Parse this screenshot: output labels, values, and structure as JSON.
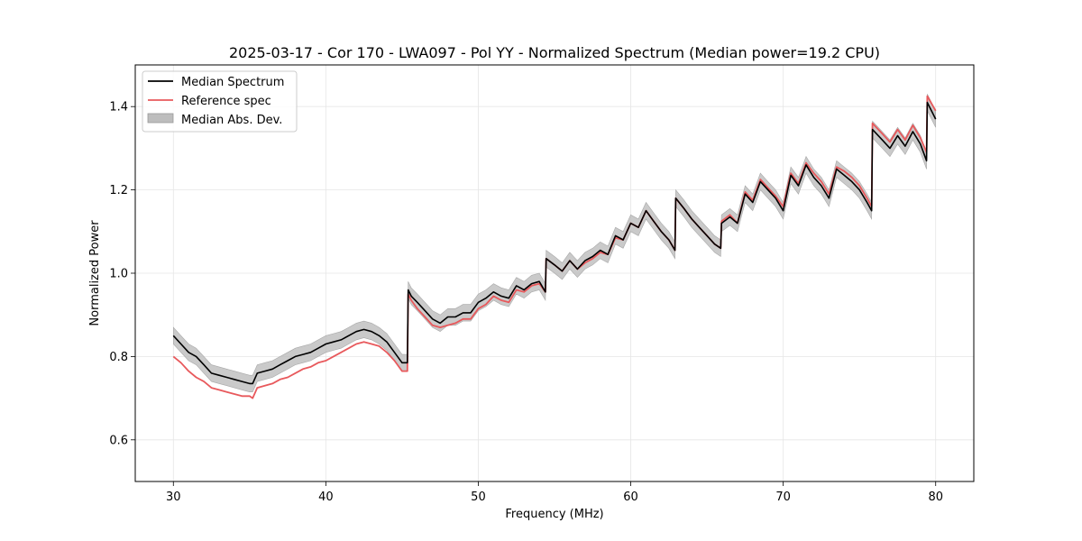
{
  "chart_data": {
    "type": "line",
    "title": "2025-03-17 - Cor 170 - LWA097 - Pol YY - Normalized Spectrum (Median power=19.2 CPU)",
    "xlabel": "Frequency (MHz)",
    "ylabel": "Normalized Power",
    "xlim": [
      27.5,
      82.5
    ],
    "ylim": [
      0.5,
      1.5
    ],
    "xticks": [
      30,
      40,
      50,
      60,
      70,
      80
    ],
    "yticks": [
      0.6,
      0.8,
      1.0,
      1.2,
      1.4
    ],
    "xtick_labels": [
      "30",
      "40",
      "50",
      "60",
      "70",
      "80"
    ],
    "ytick_labels": [
      "0.6",
      "0.8",
      "1.0",
      "1.2",
      "1.4"
    ],
    "grid": true,
    "legend_position": "top-left",
    "legend": [
      "Median Spectrum",
      "Reference spec",
      "Median Abs. Dev."
    ],
    "colors": {
      "median": "#000000",
      "reference": "#e8595c",
      "mad": "#bdbdbd"
    },
    "band_halfwidth": 0.02,
    "series": [
      {
        "name": "Median Spectrum",
        "x": [
          30,
          30.5,
          31,
          31.5,
          32,
          32.5,
          33,
          33.5,
          34,
          34.5,
          35,
          35.2,
          35.5,
          36,
          36.5,
          37,
          37.5,
          38,
          38.5,
          39,
          39.5,
          40,
          40.5,
          41,
          41.5,
          42,
          42.5,
          43,
          43.5,
          44,
          44.5,
          45,
          45.35,
          45.4,
          45.6,
          46,
          46.5,
          47,
          47.5,
          48,
          48.5,
          49,
          49.5,
          50,
          50.5,
          51,
          51.5,
          52,
          52.5,
          53,
          53.5,
          54,
          54.4,
          54.45,
          55,
          55.5,
          56,
          56.5,
          57,
          57.5,
          58,
          58.5,
          59,
          59.5,
          60,
          60.5,
          61,
          61.5,
          62,
          62.5,
          62.9,
          62.95,
          63.5,
          64,
          64.5,
          65,
          65.5,
          65.9,
          65.95,
          66.5,
          67,
          67.5,
          68,
          68.5,
          69,
          69.5,
          70,
          70.5,
          71,
          71.5,
          72,
          72.5,
          73,
          73.5,
          74,
          74.5,
          75,
          75.5,
          75.8,
          75.85,
          76.5,
          77,
          77.5,
          78,
          78.5,
          79,
          79.4,
          79.45,
          80
        ],
        "values": [
          0.85,
          0.83,
          0.81,
          0.8,
          0.78,
          0.76,
          0.755,
          0.75,
          0.745,
          0.74,
          0.735,
          0.735,
          0.76,
          0.765,
          0.77,
          0.78,
          0.79,
          0.8,
          0.805,
          0.81,
          0.82,
          0.83,
          0.835,
          0.84,
          0.85,
          0.86,
          0.865,
          0.86,
          0.85,
          0.835,
          0.81,
          0.785,
          0.785,
          0.96,
          0.945,
          0.93,
          0.91,
          0.89,
          0.88,
          0.895,
          0.895,
          0.905,
          0.905,
          0.93,
          0.94,
          0.955,
          0.945,
          0.94,
          0.97,
          0.96,
          0.975,
          0.98,
          0.955,
          1.035,
          1.02,
          1.005,
          1.03,
          1.01,
          1.03,
          1.04,
          1.055,
          1.045,
          1.09,
          1.08,
          1.12,
          1.11,
          1.15,
          1.125,
          1.1,
          1.08,
          1.055,
          1.18,
          1.155,
          1.13,
          1.11,
          1.09,
          1.07,
          1.06,
          1.12,
          1.135,
          1.12,
          1.19,
          1.17,
          1.22,
          1.2,
          1.18,
          1.15,
          1.235,
          1.21,
          1.26,
          1.23,
          1.21,
          1.18,
          1.25,
          1.235,
          1.22,
          1.2,
          1.17,
          1.15,
          1.345,
          1.32,
          1.3,
          1.33,
          1.305,
          1.34,
          1.31,
          1.27,
          1.41,
          1.37
        ]
      },
      {
        "name": "Reference spec",
        "x": [
          30,
          30.5,
          31,
          31.5,
          32,
          32.5,
          33,
          33.5,
          34,
          34.5,
          35,
          35.2,
          35.5,
          36,
          36.5,
          37,
          37.5,
          38,
          38.5,
          39,
          39.5,
          40,
          40.5,
          41,
          41.5,
          42,
          42.5,
          43,
          43.5,
          44,
          44.5,
          45,
          45.35,
          45.4,
          45.6,
          46,
          46.5,
          47,
          47.5,
          48,
          48.5,
          49,
          49.5,
          50,
          50.5,
          51,
          51.5,
          52,
          52.5,
          53,
          53.5,
          54,
          54.4,
          54.45,
          55,
          55.5,
          56,
          56.5,
          57,
          57.5,
          58,
          58.5,
          59,
          59.5,
          60,
          60.5,
          61,
          61.5,
          62,
          62.5,
          62.9,
          62.95,
          63.5,
          64,
          64.5,
          65,
          65.5,
          65.9,
          65.95,
          66.5,
          67,
          67.5,
          68,
          68.5,
          69,
          69.5,
          70,
          70.5,
          71,
          71.5,
          72,
          72.5,
          73,
          73.5,
          74,
          74.5,
          75,
          75.5,
          75.8,
          75.85,
          76.5,
          77,
          77.5,
          78,
          78.5,
          79,
          79.4,
          79.45,
          80
        ],
        "values": [
          0.8,
          0.785,
          0.765,
          0.75,
          0.74,
          0.725,
          0.72,
          0.715,
          0.71,
          0.705,
          0.705,
          0.7,
          0.725,
          0.73,
          0.735,
          0.745,
          0.75,
          0.76,
          0.77,
          0.775,
          0.785,
          0.79,
          0.8,
          0.81,
          0.82,
          0.83,
          0.835,
          0.83,
          0.825,
          0.81,
          0.79,
          0.765,
          0.765,
          0.95,
          0.935,
          0.915,
          0.895,
          0.875,
          0.87,
          0.875,
          0.88,
          0.89,
          0.89,
          0.915,
          0.925,
          0.945,
          0.935,
          0.93,
          0.96,
          0.955,
          0.97,
          0.975,
          0.955,
          1.035,
          1.02,
          1.005,
          1.03,
          1.01,
          1.025,
          1.035,
          1.05,
          1.045,
          1.085,
          1.08,
          1.12,
          1.11,
          1.15,
          1.125,
          1.1,
          1.08,
          1.055,
          1.18,
          1.155,
          1.13,
          1.11,
          1.09,
          1.07,
          1.06,
          1.125,
          1.14,
          1.12,
          1.195,
          1.175,
          1.225,
          1.205,
          1.185,
          1.16,
          1.24,
          1.215,
          1.265,
          1.24,
          1.22,
          1.19,
          1.255,
          1.245,
          1.23,
          1.21,
          1.18,
          1.16,
          1.36,
          1.335,
          1.315,
          1.345,
          1.32,
          1.355,
          1.325,
          1.29,
          1.425,
          1.39
        ]
      }
    ]
  }
}
